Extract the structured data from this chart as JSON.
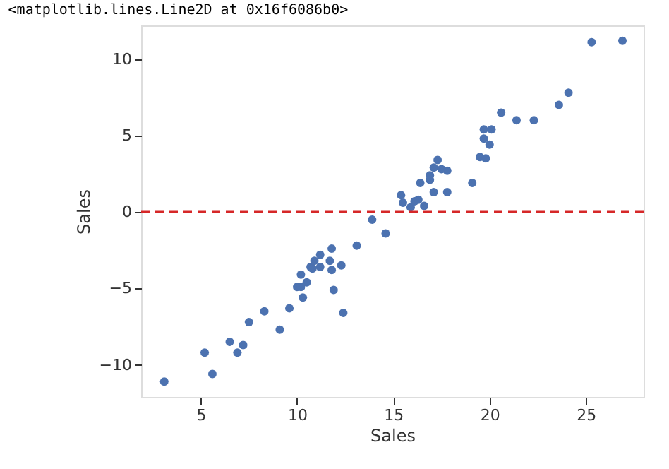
{
  "chart_data": {
    "type": "scatter",
    "title": "<matplotlib.lines.Line2D at 0x16f6086b0>",
    "xlabel": "Sales",
    "ylabel": "Sales",
    "x": [
      3.1,
      5.2,
      5.6,
      6.5,
      6.9,
      7.2,
      7.5,
      8.3,
      9.1,
      9.6,
      10.0,
      10.2,
      10.2,
      10.3,
      10.5,
      10.7,
      10.8,
      10.9,
      11.2,
      11.2,
      11.7,
      11.8,
      11.8,
      11.9,
      12.3,
      12.4,
      13.1,
      13.9,
      14.6,
      15.4,
      15.5,
      15.9,
      16.1,
      16.3,
      16.4,
      16.6,
      16.9,
      16.9,
      17.1,
      17.1,
      17.3,
      17.5,
      17.8,
      17.8,
      19.1,
      19.5,
      19.8,
      19.7,
      20.0,
      19.7,
      20.1,
      20.6,
      21.4,
      22.3,
      23.6,
      24.1,
      25.3,
      26.9
    ],
    "series": [
      {
        "color": "#4c72b0",
        "values": [
          -11.1,
          -9.2,
          -10.6,
          -8.5,
          -9.2,
          -8.7,
          -7.2,
          -6.5,
          -7.7,
          -6.3,
          -4.9,
          -4.1,
          -4.9,
          -5.6,
          -4.6,
          -3.6,
          -3.7,
          -3.2,
          -3.6,
          -2.8,
          -3.2,
          -2.4,
          -3.8,
          -5.1,
          -3.5,
          -6.6,
          -2.2,
          -0.5,
          -1.4,
          1.1,
          0.6,
          0.3,
          0.7,
          0.8,
          1.9,
          0.4,
          2.1,
          2.4,
          1.3,
          2.9,
          3.4,
          2.8,
          2.7,
          1.3,
          1.9,
          3.6,
          3.5,
          4.8,
          4.4,
          5.4,
          5.4,
          6.5,
          6.0,
          6.0,
          7.0,
          7.8,
          11.1,
          11.2
        ]
      }
    ],
    "xlim": [
      1.9,
      28.0
    ],
    "ylim": [
      -12.1,
      12.2
    ],
    "xticks": [
      5,
      10,
      15,
      20,
      25
    ],
    "yticks": [
      -10,
      -5,
      0,
      5,
      10
    ],
    "ref_lines": [
      {
        "axis": "y",
        "value": 0,
        "color": "#d62728",
        "line_style": "dashed"
      }
    ],
    "marker": "circle"
  }
}
